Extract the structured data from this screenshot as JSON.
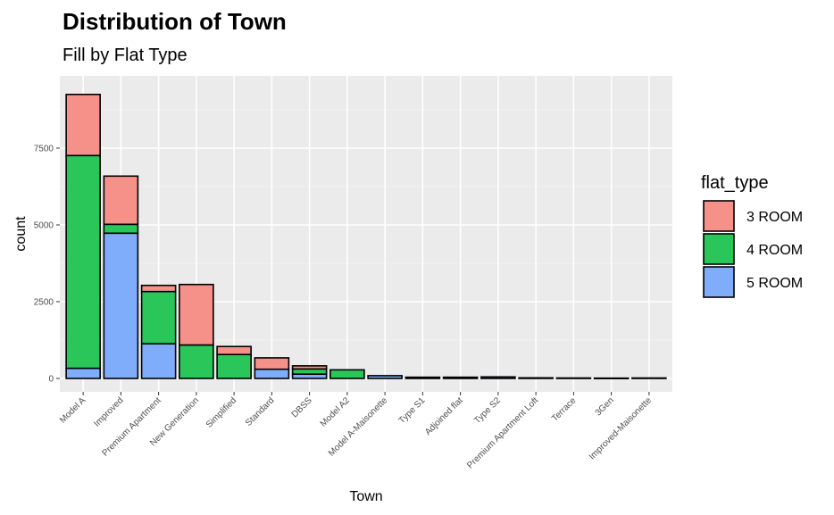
{
  "chart_data": {
    "type": "bar",
    "stacked": true,
    "title": "Distribution of Town",
    "subtitle": "Fill by Flat Type",
    "xlabel": "Town",
    "ylabel": "count",
    "ylim": [
      0,
      9500
    ],
    "yticks": [
      0,
      2500,
      5000,
      7500
    ],
    "grid": true,
    "legend_position": "right",
    "legend_title": "flat_type",
    "categories": [
      "Model A",
      "Improved",
      "Premium Apartment",
      "New Generation",
      "Simplified",
      "Standard",
      "DBSS",
      "Model A2",
      "Model A-Maisonette",
      "Type S1",
      "Adjoined flat",
      "Type S2",
      "Premium Apartment Loft",
      "Terrace",
      "3Gen",
      "Improved-Maisonette"
    ],
    "series": [
      {
        "name": "5 ROOM",
        "color": "#7fadfb",
        "values": [
          330,
          4730,
          1130,
          0,
          0,
          300,
          140,
          0,
          90,
          40,
          40,
          50,
          20,
          15,
          10,
          15
        ]
      },
      {
        "name": "4 ROOM",
        "color": "#2ac659",
        "values": [
          6930,
          290,
          1700,
          1090,
          780,
          0,
          170,
          280,
          0,
          0,
          0,
          0,
          0,
          0,
          0,
          0
        ]
      },
      {
        "name": "3 ROOM",
        "color": "#f6918a",
        "values": [
          1990,
          1570,
          200,
          1970,
          260,
          370,
          100,
          0,
          0,
          0,
          0,
          0,
          0,
          0,
          0,
          0
        ]
      }
    ],
    "legend_order": [
      "3 ROOM",
      "4 ROOM",
      "5 ROOM"
    ]
  }
}
